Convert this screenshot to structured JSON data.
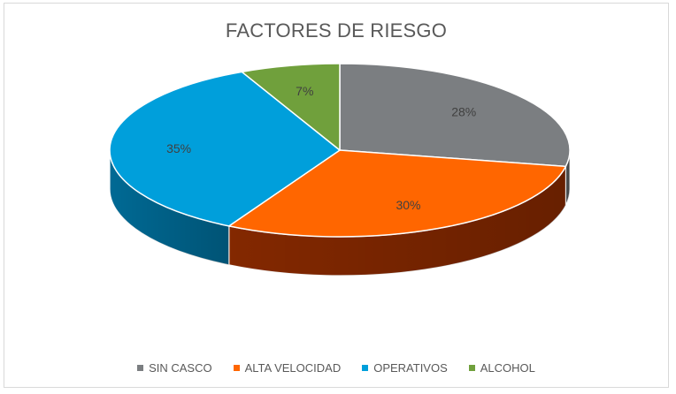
{
  "chart_data": {
    "type": "pie",
    "title": "FACTORES DE RIESGO",
    "categories": [
      "SIN CASCO",
      "ALTA VELOCIDAD",
      "OPERATIVOS",
      "ALCOHOL"
    ],
    "values": [
      28,
      30,
      35,
      7
    ],
    "data_labels": [
      "28%",
      "30%",
      "35%",
      "7%"
    ],
    "colors": [
      "#7b7e81",
      "#ff6600",
      "#009fdb",
      "#70a03c"
    ],
    "side_colors": [
      "#55585a",
      "#8a2a00",
      "#006f9c",
      "#4c6d28"
    ],
    "legend_position": "bottom",
    "style": "3d"
  }
}
